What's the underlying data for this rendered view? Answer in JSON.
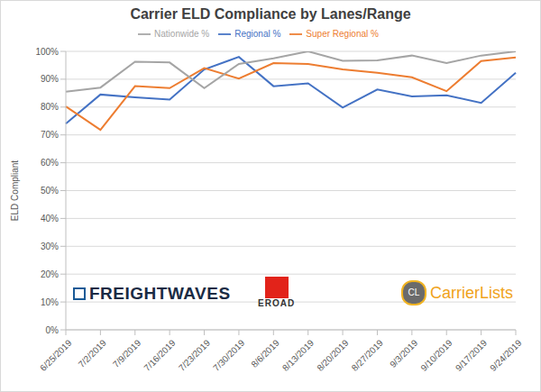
{
  "chart_data": {
    "type": "line",
    "title": "Carrier ELD Compliance by Lanes/Range",
    "y_label": "ELD Compliant",
    "categories": [
      "6/25/2019",
      "7/2/2019",
      "7/9/2019",
      "7/16/2019",
      "7/23/2019",
      "7/30/2019",
      "8/6/2019",
      "8/13/2019",
      "8/20/2019",
      "8/27/2019",
      "9/3/2019",
      "9/10/2019",
      "9/17/2019",
      "9/24/2019"
    ],
    "series": [
      {
        "name": "Regional %",
        "color": "#4472c4",
        "values": [
          74,
          84.5,
          83.5,
          82.7,
          93.5,
          98,
          87.5,
          88.5,
          79.8,
          86.3,
          83.8,
          84.2,
          81.5,
          92.3
        ]
      },
      {
        "name": "Super Regional %",
        "color": "#ed7d31",
        "values": [
          80.2,
          71.8,
          87.5,
          86.8,
          94,
          90.2,
          95.8,
          95.5,
          93.5,
          92.3,
          90.7,
          85.7,
          96.5,
          97.8
        ]
      },
      {
        "name": "Nationwide %",
        "color": "#a5a5a5",
        "values": [
          85.5,
          87,
          96.3,
          96,
          86.8,
          95.5,
          97.5,
          100,
          96.6,
          96.8,
          98.5,
          95.8,
          98.5,
          100
        ]
      }
    ],
    "ylim": [
      0,
      100
    ],
    "yticks": [
      {
        "value": 0,
        "label": "0%"
      },
      {
        "value": 10,
        "label": "10%"
      },
      {
        "value": 20,
        "label": "20%"
      },
      {
        "value": 30,
        "label": "30%"
      },
      {
        "value": 40,
        "label": "40%"
      },
      {
        "value": 50,
        "label": "50%"
      },
      {
        "value": 60,
        "label": "60%"
      },
      {
        "value": 70,
        "label": "70%"
      },
      {
        "value": 80,
        "label": "80%"
      },
      {
        "value": 90,
        "label": "90%"
      },
      {
        "value": 100,
        "label": "100%"
      }
    ],
    "grid": true,
    "legend": "top",
    "annotations": [
      "FREIGHTWAVES",
      "EROAD",
      "CL",
      "CarrierLists"
    ]
  }
}
